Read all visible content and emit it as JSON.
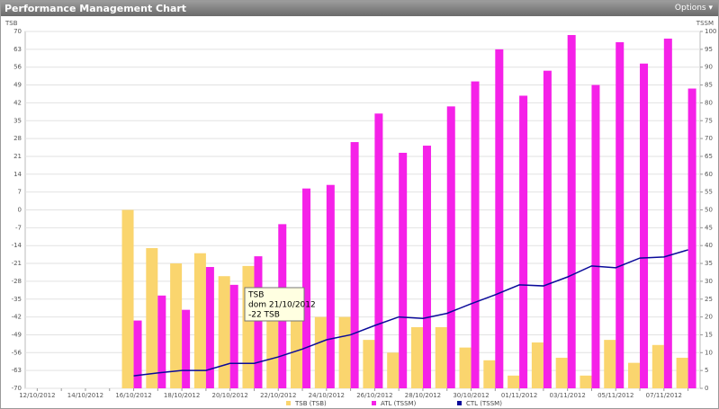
{
  "header": {
    "title": "Performance Management Chart",
    "options": "Options ▾"
  },
  "chart_data": {
    "type": "bar",
    "ylabel": "TSB",
    "y2label": "TSSM",
    "categories": [
      "12/10/2012",
      null,
      "14/10/2012",
      null,
      "16/10/2012",
      null,
      "18/10/2012",
      null,
      "20/10/2012",
      null,
      "22/10/2012",
      null,
      "24/10/2012",
      null,
      "26/10/2012",
      null,
      "28/10/2012",
      null,
      "30/10/2012",
      null,
      "01/11/2012",
      null,
      "03/11/2012",
      null,
      "05/11/2012",
      null,
      "07/11/2012",
      null
    ],
    "series": [
      {
        "name": "TSB (TSB)",
        "type": "bar",
        "axis": "y",
        "color": "#fad56e",
        "values": [
          null,
          null,
          null,
          null,
          0,
          -15,
          -21,
          -17,
          -26,
          -22,
          -33,
          -40,
          -42,
          -42,
          -51,
          -56,
          -46,
          -46,
          -54,
          -59,
          -65,
          -52,
          -58,
          -65,
          -51,
          -60,
          -53,
          -58
        ]
      },
      {
        "name": "ATL (TSSM)",
        "type": "bar",
        "axis": "y2",
        "color": "#f521e8",
        "values": [
          null,
          null,
          null,
          null,
          19,
          26,
          22,
          34,
          29,
          37,
          46,
          56,
          57,
          69,
          77,
          66,
          68,
          79,
          86,
          95,
          82,
          89,
          99,
          85,
          97,
          91,
          98,
          84
        ]
      },
      {
        "name": "CTL (TSSM)",
        "type": "line",
        "axis": "y2",
        "color": "#0a0a9a",
        "values": [
          null,
          null,
          null,
          null,
          3.5,
          4.3,
          5,
          5,
          7,
          7,
          8.8,
          11,
          13.6,
          15,
          17.6,
          20,
          19.6,
          21,
          23.7,
          26.2,
          29,
          28.7,
          31.2,
          34.3,
          33.8,
          36.5,
          36.8,
          38.8
        ]
      }
    ],
    "ylim": [
      -70,
      70
    ],
    "yticks": [
      -70,
      -63,
      -56,
      -49,
      -42,
      -35,
      -28,
      -21,
      -14,
      -7,
      0,
      7,
      14,
      21,
      28,
      35,
      42,
      49,
      56,
      63,
      70
    ],
    "y2lim": [
      0,
      100
    ],
    "y2ticks": [
      0,
      5,
      10,
      15,
      20,
      25,
      30,
      35,
      40,
      45,
      50,
      55,
      60,
      65,
      70,
      75,
      80,
      85,
      90,
      95,
      100
    ],
    "grid": true,
    "tooltip": [
      "TSB",
      "dom 21/10/2012",
      "-22 TSB"
    ]
  }
}
